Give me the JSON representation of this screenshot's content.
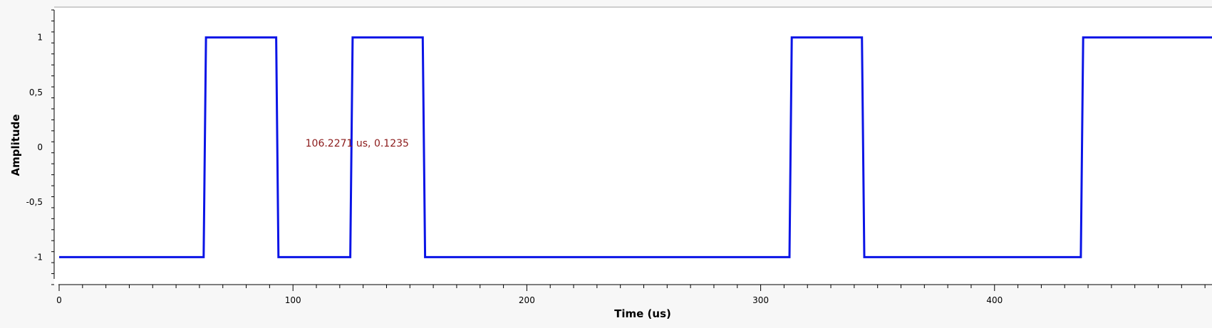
{
  "chart_data": {
    "type": "line",
    "xlabel": "Time (us)",
    "ylabel": "Amplitude",
    "xlim": [
      0,
      493
    ],
    "ylim": [
      -1.25,
      1.25
    ],
    "x_ticks": [
      0,
      100,
      200,
      300,
      400
    ],
    "x_tick_labels": [
      "0",
      "100",
      "200",
      "300",
      "400"
    ],
    "y_ticks": [
      1,
      0.5,
      0,
      -0.5,
      -1
    ],
    "y_tick_labels": [
      "1",
      "0,5",
      "0",
      "-0,5",
      "-1"
    ],
    "grid": false,
    "series": [
      {
        "color": "#0a14e6",
        "x": [
          0,
          61.8,
          62.8,
          92.8,
          93.8,
          124.5,
          125.5,
          155.5,
          156.5,
          312.3,
          313.3,
          343.3,
          344.3,
          436.9,
          437.9,
          493
        ],
        "y": [
          -1,
          -1,
          1,
          1,
          -1,
          -1,
          1,
          1,
          -1,
          -1,
          1,
          1,
          -1,
          -1,
          1,
          1
        ]
      }
    ],
    "annotations": [
      {
        "text": "106.2271 us, 0.1235",
        "x": 106.2271,
        "y": 0.1235,
        "color": "#8b1a1a"
      }
    ]
  }
}
